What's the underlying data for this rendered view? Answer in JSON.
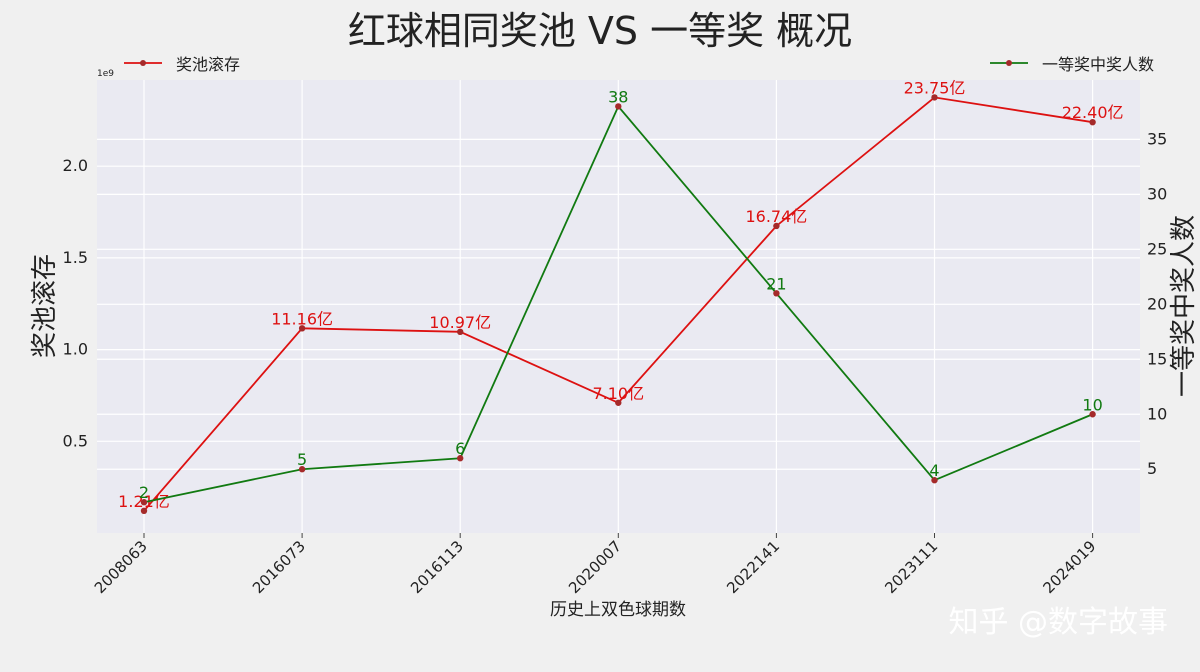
{
  "chart_data": {
    "type": "line",
    "title": "红球相同奖池 VS 一等奖 概况",
    "xlabel": "历史上双色球期数",
    "ylabel_left": "奖池滚存",
    "ylabel_right": "一等奖中奖人数",
    "offset_text": "1e9",
    "categories": [
      "2008063",
      "2016073",
      "2016113",
      "2020007",
      "2022141",
      "2023111",
      "2024019"
    ],
    "ylim_left": [
      0.0,
      2.47
    ],
    "yticks_left": [
      0.5,
      1.0,
      1.5,
      2.0
    ],
    "yticklabels_left": [
      "0.5",
      "1.0",
      "1.5",
      "2.0"
    ],
    "ylim_right": [
      -0.8,
      40.4
    ],
    "yticks_right": [
      5,
      10,
      15,
      20,
      25,
      30,
      35
    ],
    "yticklabels_right": [
      "5",
      "10",
      "15",
      "20",
      "25",
      "30",
      "35"
    ],
    "grid": true,
    "series": [
      {
        "name": "奖池滚存",
        "axis": "left",
        "color": "#dd1111",
        "values": [
          0.121,
          1.116,
          1.097,
          0.71,
          1.674,
          2.375,
          2.24
        ],
        "labels": [
          "1.21亿",
          "11.16亿",
          "10.97亿",
          "7.10亿",
          "16.74亿",
          "23.75亿",
          "22.40亿"
        ],
        "legend_position": "top-left"
      },
      {
        "name": "一等奖中奖人数",
        "axis": "right",
        "color": "#117a11",
        "values": [
          2,
          5,
          6,
          38,
          21,
          4,
          10
        ],
        "labels": [
          "2",
          "5",
          "6",
          "38",
          "21",
          "4",
          "10"
        ],
        "legend_position": "top-right"
      }
    ]
  },
  "watermark": "知乎 @数字故事"
}
